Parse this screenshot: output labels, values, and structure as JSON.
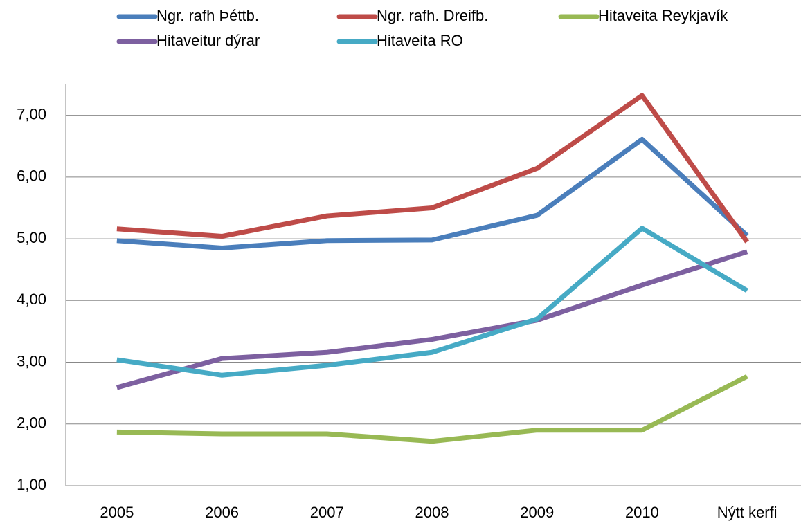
{
  "chart_data": {
    "type": "line",
    "categories": [
      "2005",
      "2006",
      "2007",
      "2008",
      "2009",
      "2010",
      "Nýtt kerfi"
    ],
    "series": [
      {
        "name": "Ngr. rafh Þéttb.",
        "color": "#4a7ebb",
        "values": [
          4.97,
          4.85,
          4.97,
          4.98,
          5.38,
          6.61,
          5.05
        ]
      },
      {
        "name": "Ngr. rafh. Dreifb.",
        "color": "#be4b48",
        "values": [
          5.16,
          5.04,
          5.37,
          5.5,
          6.14,
          7.32,
          4.95
        ]
      },
      {
        "name": "Hitaveita Reykjavík",
        "color": "#98b954",
        "values": [
          1.87,
          1.84,
          1.84,
          1.72,
          1.9,
          1.9,
          2.77
        ]
      },
      {
        "name": "Hitaveitur dýrar",
        "color": "#7d60a0",
        "values": [
          2.59,
          3.06,
          3.16,
          3.37,
          3.68,
          4.25,
          4.79
        ]
      },
      {
        "name": "Hitaveita RO",
        "color": "#46aac5",
        "values": [
          3.04,
          2.79,
          2.95,
          3.16,
          3.7,
          5.17,
          4.16
        ]
      }
    ],
    "ylim": [
      1,
      7.5
    ],
    "yticks": [
      {
        "value": 1,
        "label": "1,00"
      },
      {
        "value": 2,
        "label": "2,00"
      },
      {
        "value": 3,
        "label": "3,00"
      },
      {
        "value": 4,
        "label": "4,00"
      },
      {
        "value": 5,
        "label": "5,00"
      },
      {
        "value": 6,
        "label": "6,00"
      },
      {
        "value": 7,
        "label": "7,00"
      }
    ],
    "grid": true,
    "legend": "top"
  }
}
